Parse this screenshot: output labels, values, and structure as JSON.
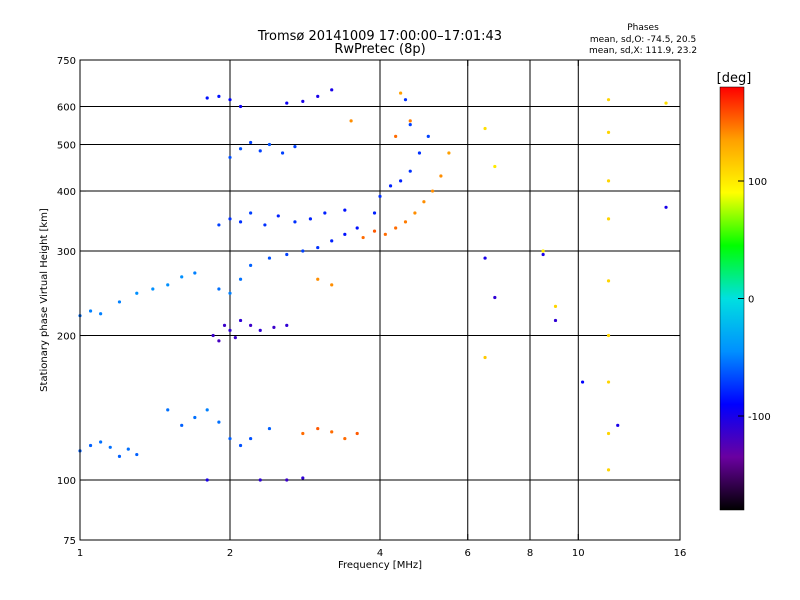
{
  "chart_data": {
    "type": "scatter",
    "title": "Tromsø 20141009 17:00:00–17:01:43",
    "subtitle": "RwPretec (8p)",
    "info": {
      "heading": "Phases",
      "line_o": "mean, sd,O: -74.5, 20.5",
      "line_x": "mean, sd,X: 111.9, 23.2"
    },
    "xlabel": "Frequency [MHz]",
    "ylabel": "Stationary phase Virtual Height [km]",
    "x_scale": "log",
    "y_scale": "log",
    "xlim": [
      1,
      16
    ],
    "ylim": [
      75,
      750
    ],
    "x_ticks": [
      1,
      2,
      4,
      6,
      8,
      10,
      16
    ],
    "x_tick_labels": [
      "1",
      "2",
      "4",
      "6",
      "8",
      "10",
      "16"
    ],
    "y_ticks": [
      75,
      100,
      200,
      300,
      400,
      500,
      600,
      750
    ],
    "y_tick_labels": [
      "75",
      "100",
      "200",
      "300",
      "400",
      "500",
      "600",
      "750"
    ],
    "grid_x": [
      2,
      4,
      6,
      8,
      10
    ],
    "grid_y": [
      100,
      200,
      300,
      400,
      500,
      600
    ],
    "colorbar": {
      "label": "[deg]",
      "min": -180,
      "max": 180,
      "ticks": [
        100,
        0,
        -100
      ],
      "tick_labels": [
        "100",
        "0",
        "-100"
      ]
    },
    "colors": {
      "colormap": [
        "#000000",
        "#6a00a0",
        "#0000ff",
        "#0090ff",
        "#00e0e0",
        "#00ff00",
        "#ffff00",
        "#ffa000",
        "#ff0000"
      ]
    },
    "series": [
      {
        "points": [
          [
            1.0,
            115,
            -60
          ],
          [
            1.05,
            118,
            -60
          ],
          [
            1.1,
            120,
            -55
          ],
          [
            1.15,
            117,
            -55
          ],
          [
            1.2,
            112,
            -60
          ],
          [
            1.25,
            116,
            -55
          ],
          [
            1.3,
            113,
            -60
          ],
          [
            1.0,
            220,
            -55
          ],
          [
            1.05,
            225,
            -50
          ],
          [
            1.1,
            222,
            -50
          ],
          [
            1.2,
            235,
            -50
          ],
          [
            1.3,
            245,
            -45
          ],
          [
            1.4,
            250,
            -45
          ],
          [
            1.5,
            255,
            -45
          ],
          [
            1.6,
            265,
            -45
          ],
          [
            1.7,
            270,
            -50
          ],
          [
            1.5,
            140,
            -55
          ],
          [
            1.6,
            130,
            -60
          ],
          [
            1.7,
            135,
            -55
          ],
          [
            1.8,
            140,
            -50
          ],
          [
            1.9,
            132,
            -55
          ],
          [
            2.0,
            122,
            -60
          ],
          [
            2.1,
            118,
            -65
          ],
          [
            2.2,
            122,
            -65
          ],
          [
            2.4,
            128,
            -60
          ],
          [
            1.85,
            200,
            -115
          ],
          [
            1.9,
            195,
            -120
          ],
          [
            1.95,
            210,
            -115
          ],
          [
            2.0,
            205,
            -110
          ],
          [
            2.05,
            198,
            -115
          ],
          [
            2.1,
            215,
            -110
          ],
          [
            2.2,
            210,
            -115
          ],
          [
            2.3,
            205,
            -110
          ],
          [
            2.45,
            208,
            -115
          ],
          [
            2.6,
            210,
            -110
          ],
          [
            1.9,
            250,
            -55
          ],
          [
            2.0,
            245,
            -50
          ],
          [
            2.1,
            262,
            -55
          ],
          [
            2.2,
            280,
            -60
          ],
          [
            2.4,
            290,
            -65
          ],
          [
            2.6,
            295,
            -70
          ],
          [
            2.8,
            300,
            -70
          ],
          [
            3.0,
            305,
            -75
          ],
          [
            3.2,
            315,
            -80
          ],
          [
            3.4,
            325,
            -85
          ],
          [
            3.6,
            335,
            -85
          ],
          [
            3.9,
            360,
            -80
          ],
          [
            1.9,
            340,
            -70
          ],
          [
            2.0,
            350,
            -75
          ],
          [
            2.1,
            345,
            -75
          ],
          [
            2.2,
            360,
            -70
          ],
          [
            2.35,
            340,
            -75
          ],
          [
            2.5,
            355,
            -80
          ],
          [
            2.7,
            345,
            -75
          ],
          [
            2.9,
            350,
            -80
          ],
          [
            3.1,
            360,
            -80
          ],
          [
            3.4,
            365,
            -85
          ],
          [
            2.0,
            470,
            -65
          ],
          [
            2.1,
            490,
            -65
          ],
          [
            2.2,
            505,
            -70
          ],
          [
            2.3,
            485,
            -70
          ],
          [
            2.4,
            500,
            -65
          ],
          [
            2.55,
            480,
            -70
          ],
          [
            2.7,
            495,
            -70
          ],
          [
            1.8,
            625,
            -85
          ],
          [
            1.9,
            630,
            -85
          ],
          [
            2.0,
            620,
            -90
          ],
          [
            2.1,
            600,
            -95
          ],
          [
            2.6,
            610,
            -95
          ],
          [
            2.8,
            615,
            -100
          ],
          [
            3.0,
            630,
            -100
          ],
          [
            3.2,
            650,
            -100
          ],
          [
            4.0,
            390,
            -75
          ],
          [
            4.2,
            410,
            -80
          ],
          [
            4.4,
            420,
            -80
          ],
          [
            4.6,
            440,
            -75
          ],
          [
            4.8,
            480,
            -75
          ],
          [
            5.0,
            520,
            -70
          ],
          [
            4.5,
            620,
            -75
          ],
          [
            4.6,
            550,
            -70
          ],
          [
            1.8,
            100,
            -100
          ],
          [
            2.3,
            100,
            -110
          ],
          [
            2.6,
            100,
            -115
          ],
          [
            2.8,
            101,
            -110
          ],
          [
            6.5,
            290,
            -100
          ],
          [
            6.8,
            240,
            -110
          ],
          [
            8.5,
            295,
            -100
          ],
          [
            9.0,
            215,
            -110
          ],
          [
            10.2,
            160,
            -90
          ],
          [
            12.0,
            130,
            -100
          ],
          [
            15.0,
            370,
            -100
          ]
        ]
      },
      {
        "points": [
          [
            2.8,
            125,
            150
          ],
          [
            3.0,
            128,
            155
          ],
          [
            3.2,
            126,
            150
          ],
          [
            3.4,
            122,
            150
          ],
          [
            3.6,
            125,
            155
          ],
          [
            3.2,
            255,
            140
          ],
          [
            3.0,
            262,
            140
          ],
          [
            3.7,
            320,
            150
          ],
          [
            3.9,
            330,
            155
          ],
          [
            4.1,
            325,
            150
          ],
          [
            4.3,
            335,
            150
          ],
          [
            4.5,
            345,
            145
          ],
          [
            4.7,
            360,
            140
          ],
          [
            4.9,
            380,
            140
          ],
          [
            5.1,
            400,
            140
          ],
          [
            5.3,
            430,
            140
          ],
          [
            5.5,
            480,
            135
          ],
          [
            4.3,
            520,
            150
          ],
          [
            4.6,
            560,
            145
          ],
          [
            3.5,
            560,
            140
          ],
          [
            4.4,
            640,
            135
          ],
          [
            11.5,
            620,
            110
          ],
          [
            11.5,
            530,
            110
          ],
          [
            11.5,
            420,
            110
          ],
          [
            11.5,
            350,
            110
          ],
          [
            11.5,
            260,
            110
          ],
          [
            11.5,
            200,
            110
          ],
          [
            11.5,
            160,
            110
          ],
          [
            11.5,
            125,
            110
          ],
          [
            11.5,
            105,
            110
          ],
          [
            6.5,
            540,
            105
          ],
          [
            6.8,
            450,
            100
          ],
          [
            8.5,
            300,
            100
          ],
          [
            9.0,
            230,
            110
          ],
          [
            15.0,
            610,
            105
          ],
          [
            6.5,
            180,
            115
          ]
        ]
      }
    ]
  }
}
